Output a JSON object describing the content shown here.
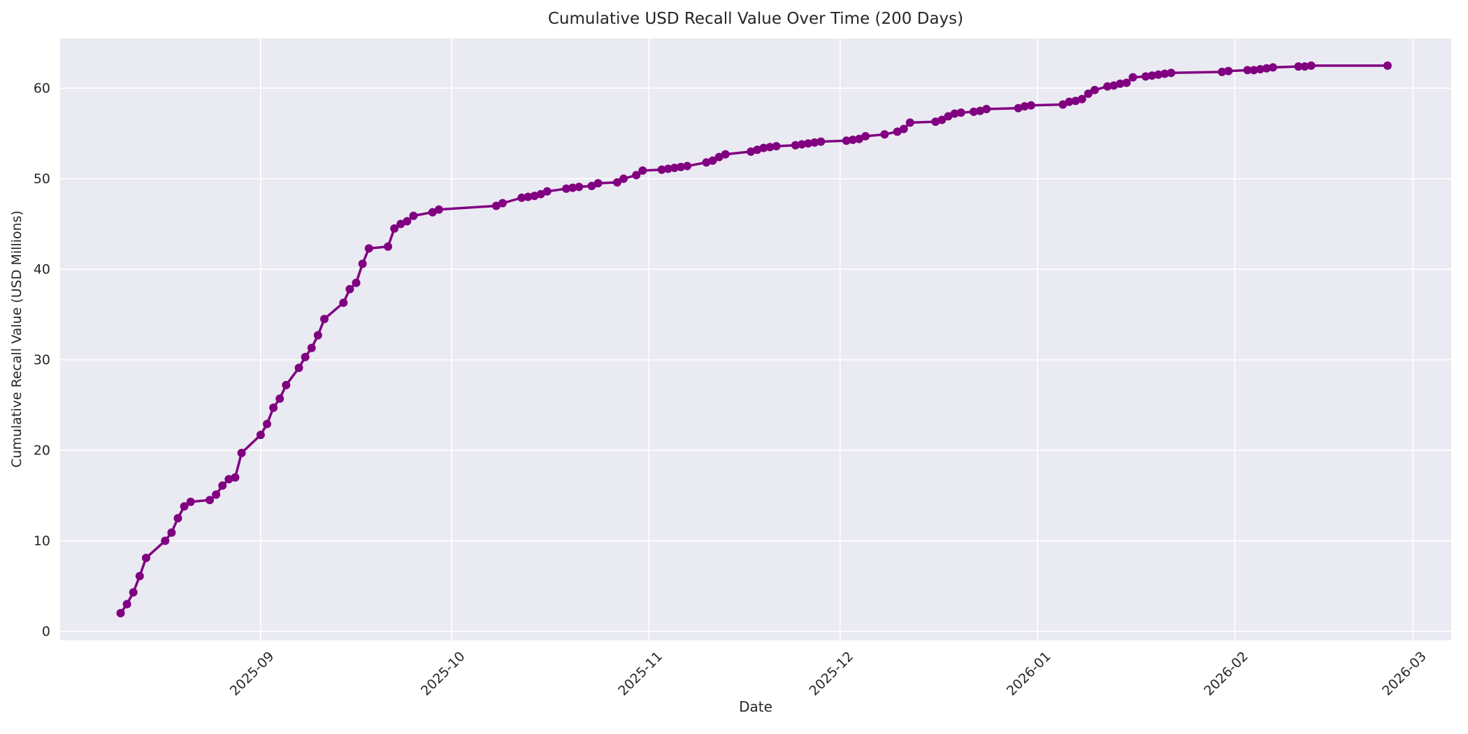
{
  "figure": {
    "title": "Cumulative USD Recall Value Over Time (200 Days)",
    "xlabel": "Date",
    "ylabel": "Cumulative Recall Value (USD Millions)"
  },
  "chart_data": {
    "type": "line",
    "title": "Cumulative USD Recall Value Over Time (200 Days)",
    "xlabel": "Date",
    "ylabel": "Cumulative Recall Value (USD Millions)",
    "grid": true,
    "legend": false,
    "x_range": [
      "2025-07-31T12:00:00Z",
      "2026-03-07T00:00:00Z"
    ],
    "ylim": [
      -1,
      65.5
    ],
    "y_ticks": [
      0,
      10,
      20,
      30,
      40,
      50,
      60
    ],
    "x_ticks": [
      {
        "value": "2025-09-01",
        "label": "2025-09"
      },
      {
        "value": "2025-10-01",
        "label": "2025-10"
      },
      {
        "value": "2025-11-01",
        "label": "2025-11"
      },
      {
        "value": "2025-12-01",
        "label": "2025-12"
      },
      {
        "value": "2026-01-01",
        "label": "2026-01"
      },
      {
        "value": "2026-02-01",
        "label": "2026-02"
      },
      {
        "value": "2026-03-01",
        "label": "2026-03"
      }
    ],
    "style": {
      "line_color": "#800080",
      "marker_color": "#800080",
      "plot_bg": "#eaeaf2",
      "grid_color": "#ffffff",
      "fig_bg": "#ffffff",
      "text_color": "#262626",
      "line_width": 3.5,
      "marker_radius": 6
    },
    "series": [
      {
        "name": "Cumulative recall value (USD millions)",
        "x": [
          "2025-08-10",
          "2025-08-11",
          "2025-08-12",
          "2025-08-13",
          "2025-08-14",
          "2025-08-17",
          "2025-08-18",
          "2025-08-19",
          "2025-08-20",
          "2025-08-21",
          "2025-08-24",
          "2025-08-25",
          "2025-08-26",
          "2025-08-27",
          "2025-08-28",
          "2025-08-29",
          "2025-09-01",
          "2025-09-02",
          "2025-09-03",
          "2025-09-04",
          "2025-09-05",
          "2025-09-07",
          "2025-09-08",
          "2025-09-09",
          "2025-09-10",
          "2025-09-11",
          "2025-09-14",
          "2025-09-15",
          "2025-09-16",
          "2025-09-17",
          "2025-09-18",
          "2025-09-21",
          "2025-09-22",
          "2025-09-23",
          "2025-09-24",
          "2025-09-25",
          "2025-09-28",
          "2025-09-29",
          "2025-10-08",
          "2025-10-09",
          "2025-10-12",
          "2025-10-13",
          "2025-10-14",
          "2025-10-15",
          "2025-10-16",
          "2025-10-19",
          "2025-10-20",
          "2025-10-21",
          "2025-10-23",
          "2025-10-24",
          "2025-10-27",
          "2025-10-28",
          "2025-10-30",
          "2025-10-31",
          "2025-11-03",
          "2025-11-04",
          "2025-11-05",
          "2025-11-06",
          "2025-11-07",
          "2025-11-10",
          "2025-11-11",
          "2025-11-12",
          "2025-11-13",
          "2025-11-17",
          "2025-11-18",
          "2025-11-19",
          "2025-11-20",
          "2025-11-21",
          "2025-11-24",
          "2025-11-25",
          "2025-11-26",
          "2025-11-27",
          "2025-11-28",
          "2025-12-02",
          "2025-12-03",
          "2025-12-04",
          "2025-12-05",
          "2025-12-08",
          "2025-12-10",
          "2025-12-11",
          "2025-12-12",
          "2025-12-16",
          "2025-12-17",
          "2025-12-18",
          "2025-12-19",
          "2025-12-20",
          "2025-12-22",
          "2025-12-23",
          "2025-12-24",
          "2025-12-29",
          "2025-12-30",
          "2025-12-31",
          "2026-01-05",
          "2026-01-06",
          "2026-01-07",
          "2026-01-08",
          "2026-01-09",
          "2026-01-10",
          "2026-01-12",
          "2026-01-13",
          "2026-01-14",
          "2026-01-15",
          "2026-01-16",
          "2026-01-18",
          "2026-01-19",
          "2026-01-20",
          "2026-01-21",
          "2026-01-22",
          "2026-01-30",
          "2026-01-31",
          "2026-02-03",
          "2026-02-04",
          "2026-02-05",
          "2026-02-06",
          "2026-02-07",
          "2026-02-11",
          "2026-02-12",
          "2026-02-13",
          "2026-02-25"
        ],
        "y": [
          2.0,
          3.0,
          4.3,
          6.1,
          8.1,
          10.0,
          10.9,
          12.5,
          13.8,
          14.3,
          14.5,
          15.1,
          16.1,
          16.8,
          17.0,
          19.7,
          21.7,
          22.9,
          24.7,
          25.7,
          27.2,
          29.1,
          30.3,
          31.3,
          32.7,
          34.5,
          36.3,
          37.8,
          38.5,
          40.6,
          42.3,
          42.5,
          44.5,
          45.0,
          45.3,
          45.9,
          46.3,
          46.6,
          47.0,
          47.3,
          47.9,
          48.0,
          48.1,
          48.3,
          48.6,
          48.9,
          49.0,
          49.1,
          49.2,
          49.5,
          49.6,
          50.0,
          50.4,
          50.9,
          51.0,
          51.1,
          51.2,
          51.3,
          51.4,
          51.8,
          52.0,
          52.4,
          52.7,
          53.0,
          53.2,
          53.4,
          53.5,
          53.6,
          53.7,
          53.8,
          53.9,
          54.0,
          54.1,
          54.2,
          54.3,
          54.4,
          54.7,
          54.9,
          55.2,
          55.5,
          56.2,
          56.3,
          56.5,
          56.9,
          57.2,
          57.3,
          57.4,
          57.5,
          57.7,
          57.8,
          58.0,
          58.1,
          58.2,
          58.5,
          58.6,
          58.8,
          59.4,
          59.8,
          60.2,
          60.3,
          60.5,
          60.6,
          61.2,
          61.3,
          61.4,
          61.5,
          61.6,
          61.7,
          61.8,
          61.9,
          62.0,
          62.0,
          62.1,
          62.2,
          62.3,
          62.4,
          62.4,
          62.5,
          62.5
        ]
      }
    ]
  }
}
